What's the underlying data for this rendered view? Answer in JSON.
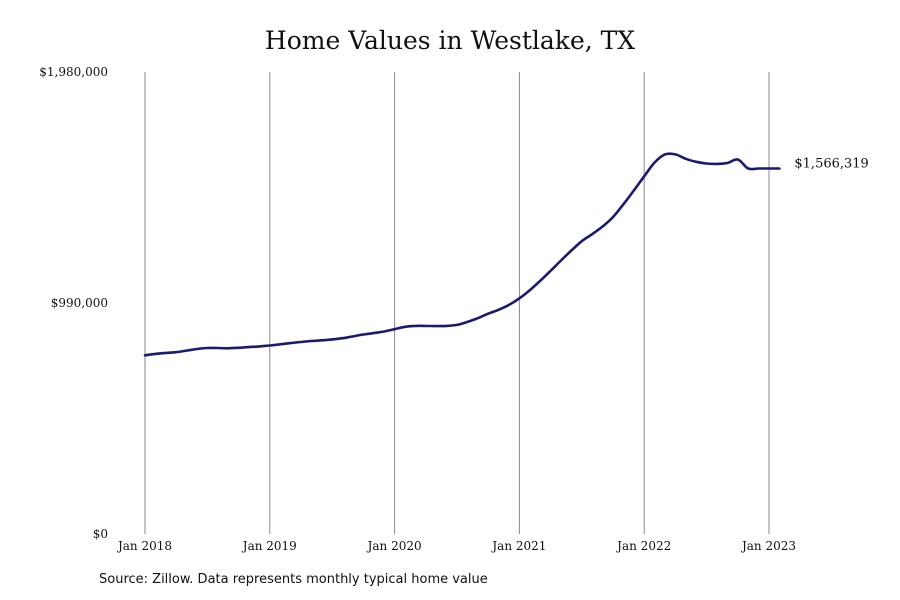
{
  "chart_data": {
    "type": "line",
    "title": "Home Values in Westlake, TX",
    "xlabel": "",
    "ylabel": "",
    "x_tick_labels": [
      "Jan 2018",
      "Jan 2019",
      "Jan 2020",
      "Jan 2021",
      "Jan 2022",
      "Jan 2023"
    ],
    "y_tick_labels": [
      "$0",
      "$990,000",
      "$1,980,000"
    ],
    "y_ticks": [
      0,
      990000,
      1980000
    ],
    "ylim": [
      0,
      1980000
    ],
    "xlim": [
      "2018-01",
      "2023-02"
    ],
    "grid": "vertical",
    "series": [
      {
        "color": "#1c1a6e",
        "x": [
          "2018-01",
          "2018-02",
          "2018-03",
          "2018-04",
          "2018-05",
          "2018-06",
          "2018-07",
          "2018-08",
          "2018-09",
          "2018-10",
          "2018-11",
          "2018-12",
          "2019-01",
          "2019-02",
          "2019-03",
          "2019-04",
          "2019-05",
          "2019-06",
          "2019-07",
          "2019-08",
          "2019-09",
          "2019-10",
          "2019-11",
          "2019-12",
          "2020-01",
          "2020-02",
          "2020-03",
          "2020-04",
          "2020-05",
          "2020-06",
          "2020-07",
          "2020-08",
          "2020-09",
          "2020-10",
          "2020-11",
          "2020-12",
          "2021-01",
          "2021-02",
          "2021-03",
          "2021-04",
          "2021-05",
          "2021-06",
          "2021-07",
          "2021-08",
          "2021-09",
          "2021-10",
          "2021-11",
          "2021-12",
          "2022-01",
          "2022-02",
          "2022-03",
          "2022-04",
          "2022-05",
          "2022-06",
          "2022-07",
          "2022-08",
          "2022-09",
          "2022-10",
          "2022-11",
          "2022-12",
          "2023-01",
          "2023-02"
        ],
        "values": [
          766000,
          772000,
          776000,
          779000,
          786000,
          793000,
          797000,
          797000,
          796000,
          798000,
          801000,
          804000,
          808000,
          813000,
          818000,
          823000,
          827000,
          830000,
          834000,
          839000,
          847000,
          855000,
          861000,
          868000,
          878000,
          888000,
          892000,
          892000,
          891000,
          892000,
          896000,
          909000,
          925000,
          944000,
          961000,
          982000,
          1010000,
          1045000,
          1085000,
          1128000,
          1172000,
          1215000,
          1255000,
          1285000,
          1318000,
          1358000,
          1413000,
          1472000,
          1533000,
          1592000,
          1627000,
          1627000,
          1608000,
          1595000,
          1588000,
          1586000,
          1590000,
          1605000,
          1566319,
          1566319,
          1566319,
          1566319
        ]
      }
    ],
    "end_label": "$1,566,319"
  },
  "source_note": "Source: Zillow. Data represents monthly typical home value"
}
